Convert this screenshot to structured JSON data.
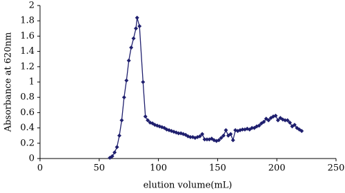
{
  "chart_data": {
    "type": "line",
    "x_label": "elution volume(mL)",
    "y_label": "Absorbance at 620nm",
    "x": [
      59,
      61,
      63,
      65,
      67,
      69,
      71,
      73,
      75,
      77,
      79,
      81,
      82,
      84,
      87,
      89,
      91,
      93,
      95,
      97,
      99,
      101,
      103,
      105,
      107,
      109,
      111,
      113,
      115,
      117,
      119,
      121,
      123,
      125,
      127,
      129,
      131,
      133,
      135,
      137,
      139,
      141,
      143,
      145,
      147,
      149,
      151,
      153,
      155,
      157,
      159,
      161,
      163,
      165,
      167,
      169,
      171,
      173,
      175,
      177,
      179,
      181,
      183,
      185,
      187,
      189,
      191,
      193,
      195,
      197,
      199,
      201,
      203,
      205,
      207,
      209,
      211,
      213,
      215,
      217,
      219,
      221
    ],
    "values": [
      0.01,
      0.03,
      0.08,
      0.15,
      0.3,
      0.5,
      0.8,
      1.02,
      1.28,
      1.45,
      1.57,
      1.7,
      1.84,
      1.73,
      1.0,
      0.55,
      0.5,
      0.47,
      0.46,
      0.44,
      0.43,
      0.42,
      0.41,
      0.4,
      0.38,
      0.37,
      0.36,
      0.35,
      0.34,
      0.33,
      0.33,
      0.32,
      0.31,
      0.29,
      0.28,
      0.28,
      0.27,
      0.28,
      0.29,
      0.32,
      0.25,
      0.25,
      0.25,
      0.26,
      0.24,
      0.23,
      0.24,
      0.27,
      0.3,
      0.37,
      0.3,
      0.32,
      0.24,
      0.37,
      0.36,
      0.37,
      0.38,
      0.38,
      0.39,
      0.38,
      0.4,
      0.4,
      0.42,
      0.43,
      0.46,
      0.48,
      0.52,
      0.5,
      0.53,
      0.55,
      0.56,
      0.5,
      0.53,
      0.51,
      0.5,
      0.5,
      0.47,
      0.42,
      0.44,
      0.4,
      0.38,
      0.36
    ],
    "color": "#1f1f6e",
    "xlim": [
      0,
      250
    ],
    "xticks": [
      0,
      50,
      100,
      150,
      200,
      250
    ],
    "ylim": [
      0,
      2
    ],
    "yticks": [
      0,
      0.2,
      0.4,
      0.6,
      0.8,
      1,
      1.2,
      1.4,
      1.6,
      1.8,
      2
    ]
  }
}
